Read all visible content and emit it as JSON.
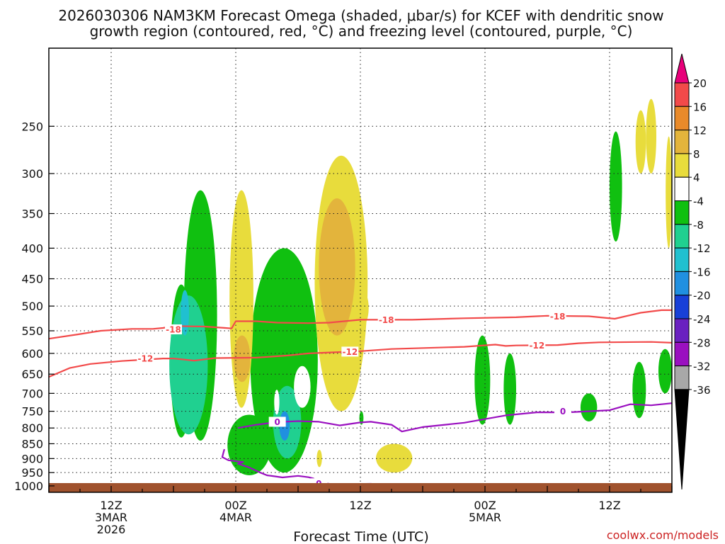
{
  "chart_data": {
    "type": "time-height cross section",
    "title_line1": "2026030306 NAM3KM Forecast Omega (shaded, μbar/s) for KCEF with dendritic snow",
    "title_line2": "growth region (contoured, red, °C) and freezing level (contoured, purple, °C)",
    "xlabel": "Forecast Time (UTC)",
    "ylabel": "Pressure (hPa)",
    "credit": "coolwx.com/models",
    "forecast_hours_range": [
      0,
      60
    ],
    "pressure_range": [
      1025,
      185
    ],
    "y_ticks": [
      250,
      300,
      350,
      400,
      450,
      500,
      550,
      600,
      650,
      700,
      750,
      800,
      850,
      900,
      950,
      1000
    ],
    "x_ticks": [
      {
        "hour": 6,
        "lines": [
          "12Z",
          "3MAR",
          "2026"
        ]
      },
      {
        "hour": 18,
        "lines": [
          "00Z",
          "4MAR"
        ]
      },
      {
        "hour": 30,
        "lines": [
          "12Z"
        ]
      },
      {
        "hour": 42,
        "lines": [
          "00Z",
          "5MAR"
        ]
      },
      {
        "hour": 54,
        "lines": [
          "12Z"
        ]
      }
    ],
    "colorbar": {
      "labels": [
        "20",
        "16",
        "12",
        "8",
        "4",
        "-4",
        "-8",
        "-12",
        "-16",
        "-20",
        "-24",
        "-28",
        "-32",
        "-36"
      ],
      "colors": [
        "#e8007a",
        "#f24a4a",
        "#e98a2a",
        "#e3b43c",
        "#e8dc3c",
        "#ffffff",
        "#10c010",
        "#20d090",
        "#20c0d0",
        "#2090e0",
        "#1840d8",
        "#6a20c0",
        "#9a10c0",
        "#a8a8a8",
        "#000000"
      ]
    },
    "omega_colors": {
      "up_weak": "#10c010",
      "up_mod": "#20d090",
      "up_strong": "#20c0d0",
      "up_max": "#2090e0",
      "down_weak": "#e8dc3c",
      "down_mod": "#e3b43c"
    },
    "contours": [
      {
        "name": "-18C",
        "color": "#f24a4a",
        "label": "-18",
        "points": [
          [
            0,
            567
          ],
          [
            3,
            557
          ],
          [
            5,
            550
          ],
          [
            8,
            546
          ],
          [
            10,
            546
          ],
          [
            11,
            544
          ],
          [
            12,
            540
          ],
          [
            15,
            541
          ],
          [
            17,
            544
          ],
          [
            17.6,
            545
          ],
          [
            18,
            530
          ],
          [
            20,
            530
          ],
          [
            22,
            533
          ],
          [
            25,
            534
          ],
          [
            27,
            533
          ],
          [
            30,
            527
          ],
          [
            35,
            527
          ],
          [
            40,
            524
          ],
          [
            45,
            522
          ],
          [
            48,
            519
          ],
          [
            52,
            520
          ],
          [
            54.5,
            525
          ],
          [
            57,
            513
          ],
          [
            59,
            508
          ],
          [
            60,
            508
          ]
        ],
        "label_positions": [
          [
            12,
            547
          ],
          [
            32.5,
            527
          ],
          [
            49,
            520
          ]
        ]
      },
      {
        "name": "-12C",
        "color": "#f24a4a",
        "label": "-12",
        "points": [
          [
            0,
            657
          ],
          [
            2,
            635
          ],
          [
            4,
            625
          ],
          [
            7,
            618
          ],
          [
            9,
            615
          ],
          [
            11,
            612
          ],
          [
            12,
            612
          ],
          [
            14,
            617
          ],
          [
            16,
            611
          ],
          [
            20,
            610
          ],
          [
            23,
            605
          ],
          [
            25,
            600
          ],
          [
            30,
            595
          ],
          [
            33,
            590
          ],
          [
            40,
            585
          ],
          [
            43,
            580
          ],
          [
            44,
            583
          ],
          [
            45,
            582
          ],
          [
            49,
            581
          ],
          [
            51,
            577
          ],
          [
            53,
            575
          ],
          [
            58,
            574
          ],
          [
            60,
            576
          ]
        ],
        "label_positions": [
          [
            9.3,
            612
          ],
          [
            29,
            596
          ],
          [
            47,
            582
          ]
        ]
      },
      {
        "name": "0C freezing level",
        "color": "#9a10c0",
        "label": "0",
        "points": [
          [
            16.9,
            868
          ],
          [
            16.7,
            895
          ],
          [
            17.3,
            906
          ],
          [
            18.7,
            912
          ],
          [
            18.2,
            918
          ],
          [
            19.2,
            930
          ],
          [
            20.3,
            949
          ],
          [
            21,
            960
          ],
          [
            22.5,
            968
          ],
          [
            24,
            962
          ],
          [
            25,
            967
          ],
          [
            25.5,
            972
          ],
          [
            25.9,
            988
          ],
          [
            27,
            992
          ],
          [
            29,
            993
          ],
          [
            31,
            992
          ],
          [
            32,
            995
          ],
          [
            33,
            998
          ],
          [
            34,
            1004
          ],
          [
            33,
            1010
          ],
          [
            30,
            1010
          ],
          [
            28,
            1008
          ]
        ],
        "label_positions": [
          [
            26,
            990
          ]
        ]
      },
      {
        "name": "0C freezing level upper",
        "color": "#9a10c0",
        "label": "0",
        "points": [
          [
            18.2,
            800
          ],
          [
            20,
            790
          ],
          [
            22,
            782
          ],
          [
            24,
            779
          ],
          [
            26,
            781
          ],
          [
            28,
            792
          ],
          [
            30,
            783
          ],
          [
            31,
            781
          ],
          [
            33,
            790
          ],
          [
            34,
            811
          ],
          [
            36,
            797
          ],
          [
            40,
            784
          ],
          [
            44,
            762
          ],
          [
            47,
            753
          ],
          [
            50,
            753
          ],
          [
            54,
            747
          ],
          [
            56,
            730
          ],
          [
            58,
            733
          ],
          [
            60,
            727
          ]
        ],
        "label_positions": [
          [
            22,
            781
          ],
          [
            49.5,
            750
          ]
        ]
      },
      {
        "name": "0C freezing level lower",
        "color": "#9a10c0",
        "label": "",
        "points": [
          [
            41,
            1010
          ],
          [
            44,
            1002
          ],
          [
            50,
            1000
          ],
          [
            55,
            998
          ],
          [
            58,
            1003
          ],
          [
            57,
            1011
          ],
          [
            50,
            1010
          ],
          [
            44,
            1012
          ]
        ],
        "label_positions": []
      }
    ]
  }
}
